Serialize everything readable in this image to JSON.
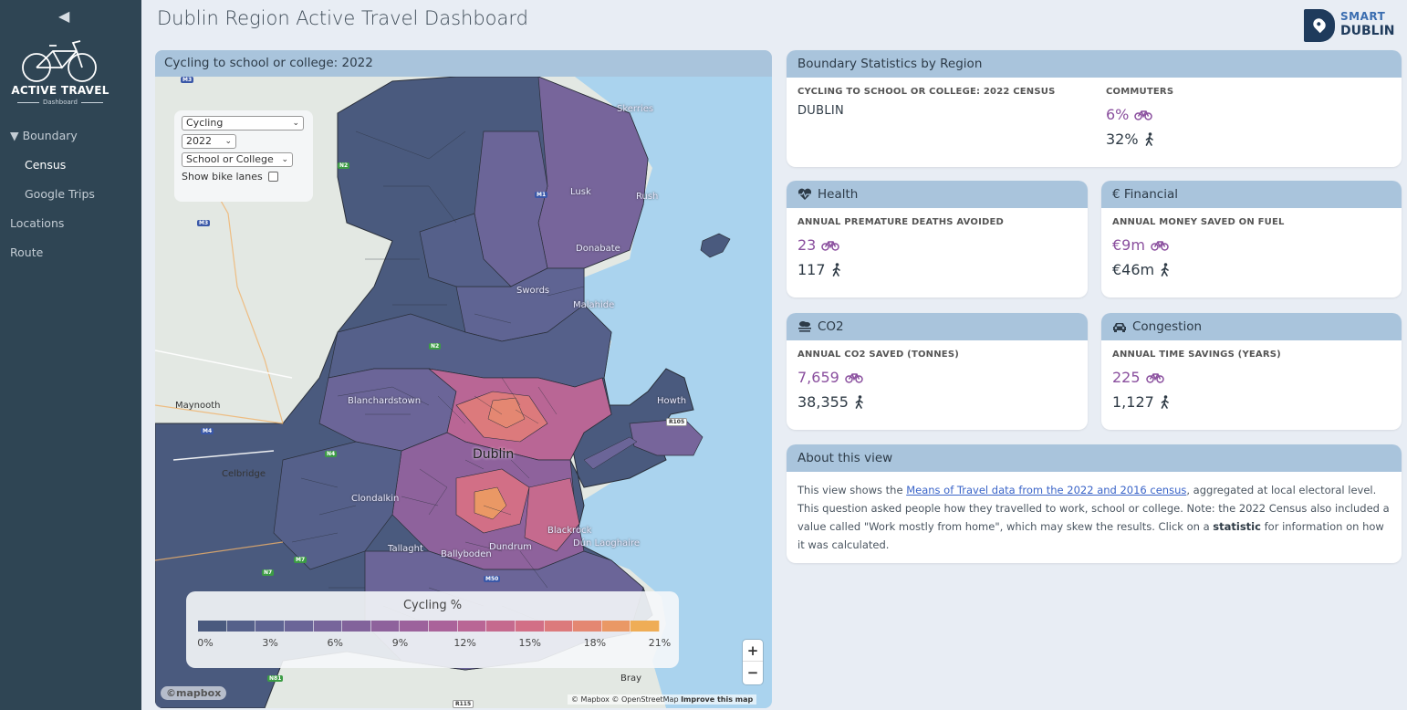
{
  "app": {
    "title": "Dublin Region Active Travel Dashboard",
    "brand": {
      "smart": "SMART",
      "dublin": "DUBLIN"
    },
    "logo": {
      "title": "ACTIVE TRAVEL",
      "subtitle": "Dashboard"
    }
  },
  "sidebar": {
    "collapse_icon": "chevron-left-icon",
    "items": [
      {
        "label": "▼ Boundary"
      },
      {
        "label": "Census",
        "active": true
      },
      {
        "label": "Google Trips"
      },
      {
        "label": "Locations"
      },
      {
        "label": "Route"
      }
    ]
  },
  "map": {
    "header": "Cycling to school or college: 2022",
    "controls": {
      "mode": "Cycling",
      "year": "2022",
      "purpose": "School or College",
      "bike_lanes_label": "Show bike lanes",
      "bike_lanes_checked": false
    },
    "legend": {
      "title": "Cycling %",
      "ticks": [
        "0%",
        "3%",
        "6%",
        "9%",
        "12%",
        "15%",
        "18%",
        "21%"
      ],
      "colors": [
        "#4a5a7e",
        "#55608a",
        "#5f6493",
        "#6b6598",
        "#77659b",
        "#82639b",
        "#8e629c",
        "#9c629c",
        "#aa639a",
        "#b96695",
        "#c56a8e",
        "#d26f86",
        "#dc7a7c",
        "#e48772",
        "#ea9865",
        "#efad56"
      ]
    },
    "labels": {
      "skerries": "Skerries",
      "lusk": "Lusk",
      "rush": "Rush",
      "donabate": "Donabate",
      "swords": "Swords",
      "malahide": "Malahide",
      "maynooth": "Maynooth",
      "blanchardstown": "Blanchardstown",
      "howth": "Howth",
      "dublin": "Dublin",
      "celbridge": "Celbridge",
      "clondalkin": "Clondalkin",
      "blackrock": "Blackrock",
      "dun_laoghaire": "Dún Laoghaire",
      "tallaght": "Tallaght",
      "ballyboden": "Ballyboden",
      "dundrum": "Dundrum",
      "bray": "Bray"
    },
    "roads": [
      "M3",
      "N2",
      "M1",
      "M3",
      "N2",
      "M4",
      "N4",
      "R105",
      "N7",
      "M50",
      "N81",
      "R115",
      "M7"
    ],
    "zoom_in": "+",
    "zoom_out": "−",
    "mapbox": "©mapbox",
    "attribution": "© Mapbox © OpenStreetMap",
    "improve": "Improve this map"
  },
  "boundary": {
    "header": "Boundary Statistics by Region",
    "census_label": "CYCLING TO SCHOOL OR COLLEGE: 2022 CENSUS",
    "region": "DUBLIN",
    "commuters_label": "COMMUTERS",
    "cycling_pct": "6%",
    "walking_pct": "32%"
  },
  "health": {
    "header": "Health",
    "label": "ANNUAL PREMATURE DEATHS AVOIDED",
    "cycling": "23",
    "walking": "117"
  },
  "financial": {
    "header": "€ Financial",
    "label": "ANNUAL MONEY SAVED ON FUEL",
    "cycling": "€9m",
    "walking": "€46m"
  },
  "co2": {
    "header": "CO2",
    "label": "ANNUAL CO2 SAVED (TONNES)",
    "cycling": "7,659",
    "walking": "38,355"
  },
  "congestion": {
    "header": "Congestion",
    "label": "ANNUAL TIME SAVINGS (YEARS)",
    "cycling": "225",
    "walking": "1,127"
  },
  "about": {
    "header": "About this view",
    "text_1": "This view shows the ",
    "link": "Means of Travel data from the 2022 and 2016 census",
    "text_2": ", aggregated at local electoral level. This question asked people how they travelled to work, school or college. Note: the 2022 Census also included a value called \"Work mostly from home\", which may skew the results. Click on a ",
    "bold": "statistic",
    "text_3": " for information on how it was calculated."
  },
  "colors": {
    "sidebar": "#2f4554",
    "card_header": "#a9c4dc",
    "cycling": "#8a4f9e",
    "sea": "#aad3ee"
  }
}
